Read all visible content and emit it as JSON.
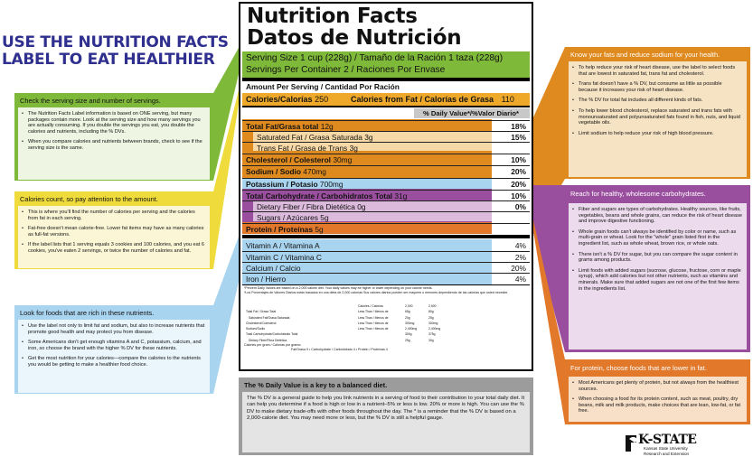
{
  "title": "USE THE NUTRITION FACTS LABEL TO EAT HEALTHIER",
  "label": {
    "title_en": "Nutrition Facts",
    "title_es": "Datos de Nutrición",
    "serving_size": "Serving Size 1 cup (228g) / Tamaño de la Ración 1 taza (228g)",
    "servings_per_container": "Servings Per Container 2 / Raciones Por Envase",
    "amount_per_serving": "Amount Per Serving / Cantidad Por Ración",
    "calories": "Calories/Calorías",
    "calories_value": "250",
    "calories_fat": "Calories from Fat / Calorías de Grasa",
    "calories_fat_value": "110",
    "dv_header": "% Daily Value*/%Valor Diario*",
    "rows": [
      {
        "name": "Total Fat/Grasa total",
        "amount": "12g",
        "pct": "18%"
      },
      {
        "name": "Saturated Fat / Grasa Saturada",
        "amount": "3g",
        "pct": "15%"
      },
      {
        "name": "Trans Fat / Grasa de Trans",
        "amount": "3g",
        "pct": ""
      },
      {
        "name": "Cholesterol / Colesterol",
        "amount": "30mg",
        "pct": "10%"
      },
      {
        "name": "Sodium / Sodio",
        "amount": "470mg",
        "pct": "20%"
      },
      {
        "name": "Potassium / Potasio",
        "amount": "700mg",
        "pct": "20%"
      },
      {
        "name": "Total Carbohydrate / Carbohidratos Total",
        "amount": "31g",
        "pct": "10%"
      },
      {
        "name": "Dietary Fiber / Fibra Dietética",
        "amount": "0g",
        "pct": "0%"
      },
      {
        "name": "Sugars / Azúcares",
        "amount": "5g",
        "pct": ""
      },
      {
        "name": "Protein / Proteínas",
        "amount": "5g",
        "pct": ""
      }
    ],
    "vitamins": [
      {
        "name": "Vitamin A / Vitamina A",
        "pct": "4%"
      },
      {
        "name": "Vitamin C / Vitamina C",
        "pct": "2%"
      },
      {
        "name": "Calcium / Calcio",
        "pct": "20%"
      },
      {
        "name": "Iron / Hierro",
        "pct": "4%"
      }
    ],
    "footnote_en": "*Percent Daily Values are based on a 2,000 calorie diet. Your daily values may be higher or lower depending on your calorie needs.",
    "footnote_es": "*Los Porcentajes de Valores Diarios están basados en una dieta de 2,000 calorías Sus valores diarios pueden ser mayores o menores dependiendo de las calorías que usted necesite.",
    "table_header": [
      "Calories / Calorías",
      "2,000",
      "2,500"
    ],
    "table_rows": [
      [
        "Total Fat / Grasa Total",
        "Less Than / Menos de",
        "65g",
        "80g"
      ],
      [
        "Saturated Fat/Grasa Saturada",
        "Less Than / Menos de",
        "20g",
        "25g"
      ],
      [
        "Cholesterol/Colesterol",
        "Less Than / Menos de",
        "300mg",
        "300mg"
      ],
      [
        "Sodium/Sodio",
        "Less Than / Menos de",
        "2,400mg",
        "2,400mg"
      ],
      [
        "Total Carbohydrate/Carbohidrato Total",
        "",
        "300g",
        "375g"
      ],
      [
        "Dietary Fiber/Fibra Dietética",
        "",
        "25g",
        "30g"
      ]
    ],
    "per_gram": "Calories per gram / Calorías por gramo:",
    "per_gram_values": "Fat/Grasa 9  •  Carbohydrate / Carbohidrato 4  •  Protein / Proteínas 4"
  },
  "boxes": {
    "serving": {
      "head": "Check the serving size and number of servings.",
      "bullets": [
        "The Nutrition Facts Label information is based on ONE serving, but many packages contain more. Look at the serving size and how many servings you are actually consuming. If you double the servings you eat, you double the calories and nutrients, including the % DVs.",
        "When you compare calories and nutrients between brands, check to see if the serving size is the same."
      ]
    },
    "calories": {
      "head": "Calories count, so pay attention to the amount.",
      "bullets": [
        "This is where you'll find the number of calories per serving and the calories from fat in each serving.",
        "Fat-free doesn't mean calorie-free. Lower fat items may have as many calories as full-fat versions.",
        "If the label lists that 1 serving equals 3 cookies and 100 calories, and you eat 6 cookies, you've eaten 2 servings, or twice the number of calories and fat."
      ]
    },
    "nutrients": {
      "head": "Look for foods that are rich in these nutrients.",
      "bullets": [
        "Use the label not only to limit fat and sodium, but also to increase nutrients that promote good health and may protect you from disease.",
        "Some Americans don't get enough vitamins A and C, potassium, calcium, and iron, so choose the brand with the higher % DV for these nutrients.",
        "Get the most nutrition for your calories—compare the calories to the nutrients you would be getting to make a healthier food choice."
      ]
    },
    "fats": {
      "head": "Know your fats and reduce sodium for your health.",
      "bullets": [
        "To help reduce your risk of heart disease, use the label to select foods that are lowest in saturated fat, trans fat and cholesterol.",
        "Trans fat doesn't have a % DV, but consume as little as possible because it increases your risk of heart disease.",
        "The % DV for total fat includes all different kinds of fats.",
        "To help lower blood cholesterol, replace saturated and trans fats with monounsaturated and polyunsaturated fats found in fish, nuts, and liquid vegetable oils.",
        "Limit sodium to help reduce your risk of high blood pressure."
      ]
    },
    "carbs": {
      "head": "Reach for healthy, wholesome carbohydrates.",
      "bullets": [
        "Fiber and sugars are types of carbohydrates. Healthy sources, like fruits, vegetables, beans and whole grains, can reduce the risk of heart disease and improve digestive functioning.",
        "Whole grain foods can't always be identified by color or name, such as multi-grain or wheat. Look for the \"whole\" grain listed first in the ingredient list, such as whole wheat, brown rice, or whole oats.",
        "There isn't a % DV for sugar, but you can compare the sugar content in grams among products.",
        "Limit foods with added sugars (sucrose, glucose, fructose, corn or maple syrup), which add calories but not other nutrients, such as vitamins and minerals. Make sure that added sugars are not one of the first few items in the ingredients list."
      ]
    },
    "protein": {
      "head": "For protein, choose foods that are lower in fat.",
      "bullets": [
        "Most Americans get plenty of protein, but not always from the healthiest sources.",
        "When choosing a food for its protein content, such as meat, poultry, dry beans, milk and milk products, make choices that are lean, low-fat, or fat free."
      ]
    },
    "dv": {
      "head": "The % Daily Value is a key to a balanced diet.",
      "text": "The % DV is a general guide to help you link nutrients in a serving of food to their contribution to your total daily diet. It can help you determine if a food is high or low in a nutrient–5% or less is low. 20% or more is high. You can use the % DV to make dietary trade-offs with other foods throughout the day. The * is a reminder that the % DV is based on a 2,000-calorie diet. You may need more or less, but the % DV is still a helpful gauge."
    }
  },
  "logo": {
    "name": "K-STATE",
    "sub1": "Kansas State University",
    "sub2": "Research and Extension"
  },
  "colors": {
    "green": "#7fb93a",
    "yellow": "#efdc3c",
    "orange": "#df8a1f",
    "blue": "#a9d4ef",
    "purple": "#9a4f9e",
    "gray": "#9c9c9c",
    "title": "#2e2f8e"
  }
}
